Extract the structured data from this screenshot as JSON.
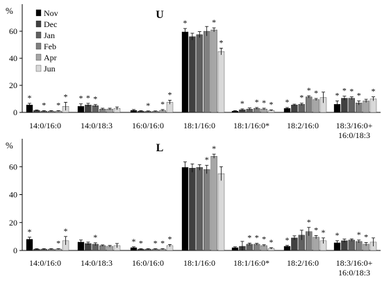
{
  "chart_data": [
    {
      "type": "bar",
      "title": "U",
      "ylabel": "%",
      "ylim": [
        0,
        80
      ],
      "yticks": [
        0,
        20,
        40,
        60,
        80
      ],
      "legend_position": "top-left",
      "categories": [
        "14:0/16:0",
        "14:0/18:3",
        "16:0/16:0",
        "18:1/16:0",
        "18:1/16:0*",
        "18:2/16:0",
        "18:3/16:0+\n16:0/18:3"
      ],
      "series": [
        {
          "name": "Nov",
          "color": "#000000",
          "values": [
            5.5,
            4.5,
            1.5,
            59.5,
            1.0,
            3.0,
            6.0
          ],
          "errors": [
            1.2,
            1.8,
            0.6,
            2.5,
            0.3,
            0.6,
            2.5
          ],
          "stars": [
            true,
            true,
            false,
            true,
            false,
            true,
            true
          ]
        },
        {
          "name": "Dec",
          "color": "#404040",
          "values": [
            1.5,
            5.5,
            1.0,
            56.0,
            2.0,
            5.5,
            10.5
          ],
          "errors": [
            0.3,
            1.2,
            0.3,
            2.5,
            0.6,
            0.6,
            1.5
          ],
          "stars": [
            false,
            true,
            false,
            false,
            true,
            false,
            true
          ]
        },
        {
          "name": "Jan",
          "color": "#606060",
          "values": [
            1.0,
            5.0,
            0.8,
            57.5,
            2.5,
            6.0,
            10.5
          ],
          "errors": [
            0.3,
            0.8,
            0.3,
            2.2,
            0.8,
            0.8,
            1.0
          ],
          "stars": [
            true,
            true,
            true,
            false,
            false,
            true,
            true
          ]
        },
        {
          "name": "Feb",
          "color": "#808080",
          "values": [
            1.0,
            2.5,
            0.8,
            60.0,
            3.0,
            11.5,
            7.0
          ],
          "errors": [
            0.3,
            0.6,
            0.3,
            3.5,
            0.6,
            0.8,
            1.5
          ],
          "stars": [
            false,
            false,
            false,
            false,
            true,
            true,
            true
          ]
        },
        {
          "name": "Apr",
          "color": "#a6a6a6",
          "values": [
            1.0,
            2.5,
            1.5,
            61.0,
            2.5,
            9.5,
            8.5
          ],
          "errors": [
            0.3,
            0.6,
            0.6,
            1.5,
            0.6,
            0.8,
            1.2
          ],
          "stars": [
            true,
            false,
            true,
            true,
            true,
            true,
            false
          ]
        },
        {
          "name": "Jun",
          "color": "#d9d9d9",
          "values": [
            4.5,
            3.0,
            7.5,
            45.0,
            1.5,
            11.0,
            10.0
          ],
          "errors": [
            3.0,
            1.0,
            1.5,
            2.5,
            0.4,
            4.0,
            1.5
          ],
          "stars": [
            true,
            false,
            true,
            true,
            true,
            false,
            true
          ]
        }
      ]
    },
    {
      "type": "bar",
      "title": "L",
      "ylabel": "%",
      "ylim": [
        0,
        80
      ],
      "yticks": [
        0,
        20,
        40,
        60,
        80
      ],
      "categories": [
        "14:0/16:0",
        "14:0/18:3",
        "16:0/16:0",
        "18:1/16:0",
        "18:1/16:0*",
        "18:2/16:0",
        "18:3/16:0+\n16:0/18:3"
      ],
      "series": [
        {
          "name": "Nov",
          "color": "#000000",
          "values": [
            8.0,
            6.0,
            2.0,
            59.5,
            2.0,
            3.0,
            5.5
          ],
          "errors": [
            1.5,
            1.5,
            0.6,
            4.0,
            0.6,
            0.6,
            1.5
          ],
          "stars": [
            true,
            false,
            true,
            false,
            false,
            true,
            true
          ]
        },
        {
          "name": "Dec",
          "color": "#404040",
          "values": [
            1.0,
            5.0,
            1.0,
            59.0,
            3.0,
            9.0,
            7.0
          ],
          "errors": [
            0.3,
            1.0,
            0.3,
            3.0,
            3.5,
            1.5,
            1.2
          ],
          "stars": [
            false,
            false,
            true,
            false,
            false,
            false,
            false
          ]
        },
        {
          "name": "Jan",
          "color": "#606060",
          "values": [
            1.0,
            4.5,
            1.0,
            59.5,
            4.5,
            11.0,
            7.5
          ],
          "errors": [
            0.3,
            1.0,
            0.3,
            2.0,
            0.8,
            3.5,
            0.8
          ],
          "stars": [
            false,
            true,
            false,
            false,
            true,
            false,
            false
          ]
        },
        {
          "name": "Feb",
          "color": "#808080",
          "values": [
            1.0,
            3.5,
            1.0,
            58.0,
            4.5,
            13.5,
            6.5
          ],
          "errors": [
            0.3,
            0.5,
            0.3,
            3.0,
            0.6,
            3.0,
            1.0
          ],
          "stars": [
            false,
            false,
            true,
            true,
            true,
            true,
            true
          ]
        },
        {
          "name": "Apr",
          "color": "#a6a6a6",
          "values": [
            1.0,
            3.0,
            1.0,
            67.5,
            3.5,
            9.5,
            4.5
          ],
          "errors": [
            0.3,
            0.6,
            0.3,
            1.5,
            0.6,
            1.2,
            1.2
          ],
          "stars": [
            true,
            false,
            true,
            true,
            true,
            true,
            true
          ]
        },
        {
          "name": "Jun",
          "color": "#d9d9d9",
          "values": [
            7.0,
            3.5,
            3.5,
            55.0,
            1.5,
            7.0,
            6.0
          ],
          "errors": [
            3.0,
            1.5,
            0.8,
            5.0,
            0.5,
            2.0,
            3.0
          ],
          "stars": [
            true,
            false,
            true,
            false,
            true,
            true,
            false
          ]
        }
      ]
    }
  ]
}
